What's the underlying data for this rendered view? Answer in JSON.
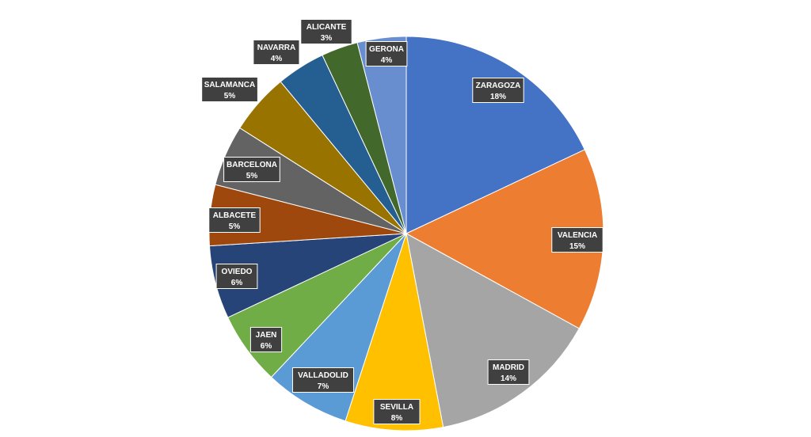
{
  "chart_data": {
    "type": "pie",
    "title": "",
    "start_angle_deg": 0,
    "direction": "clockwise",
    "legend": "none",
    "categories": [
      "ZARAGOZA",
      "VALENCIA",
      "MADRID",
      "SEVILLA",
      "VALLADOLID",
      "JAEN",
      "OVIEDO",
      "ALBACETE",
      "BARCELONA",
      "SALAMANCA",
      "NAVARRA",
      "ALICANTE",
      "GERONA"
    ],
    "values": [
      18,
      15,
      14,
      8,
      7,
      6,
      6,
      5,
      5,
      5,
      4,
      3,
      4
    ],
    "value_labels": [
      "18%",
      "15%",
      "14%",
      "8%",
      "7%",
      "6%",
      "6%",
      "5%",
      "5%",
      "5%",
      "4%",
      "3%",
      "4%"
    ],
    "colors": [
      "#4472C4",
      "#ED7D31",
      "#A5A5A5",
      "#FFC000",
      "#5B9BD5",
      "#70AD47",
      "#264478",
      "#9E480E",
      "#636363",
      "#997300",
      "#255E91",
      "#43682B",
      "#698ED0"
    ],
    "label_color": "#404040"
  }
}
